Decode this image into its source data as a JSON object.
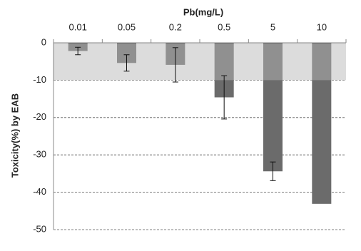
{
  "chart_data": {
    "type": "bar",
    "title": "Pb(mg/L)",
    "y_label": "Toxicity(%) by EAB",
    "categories": [
      "0.01",
      "0.05",
      "0.2",
      "0.5",
      "5",
      "10"
    ],
    "values": [
      -2.2,
      -5.4,
      -5.9,
      -14.6,
      -34.4,
      -43.1
    ],
    "errors": [
      1.0,
      2.2,
      4.6,
      5.8,
      2.5,
      null
    ],
    "color": "#6b6b6b",
    "shaded_band": [
      0,
      -10
    ],
    "band_color": "#d0d0d0",
    "ylim": [
      -50,
      0
    ],
    "yticks": [
      0,
      -10,
      -20,
      -30,
      -40,
      -50
    ],
    "grid": true
  }
}
